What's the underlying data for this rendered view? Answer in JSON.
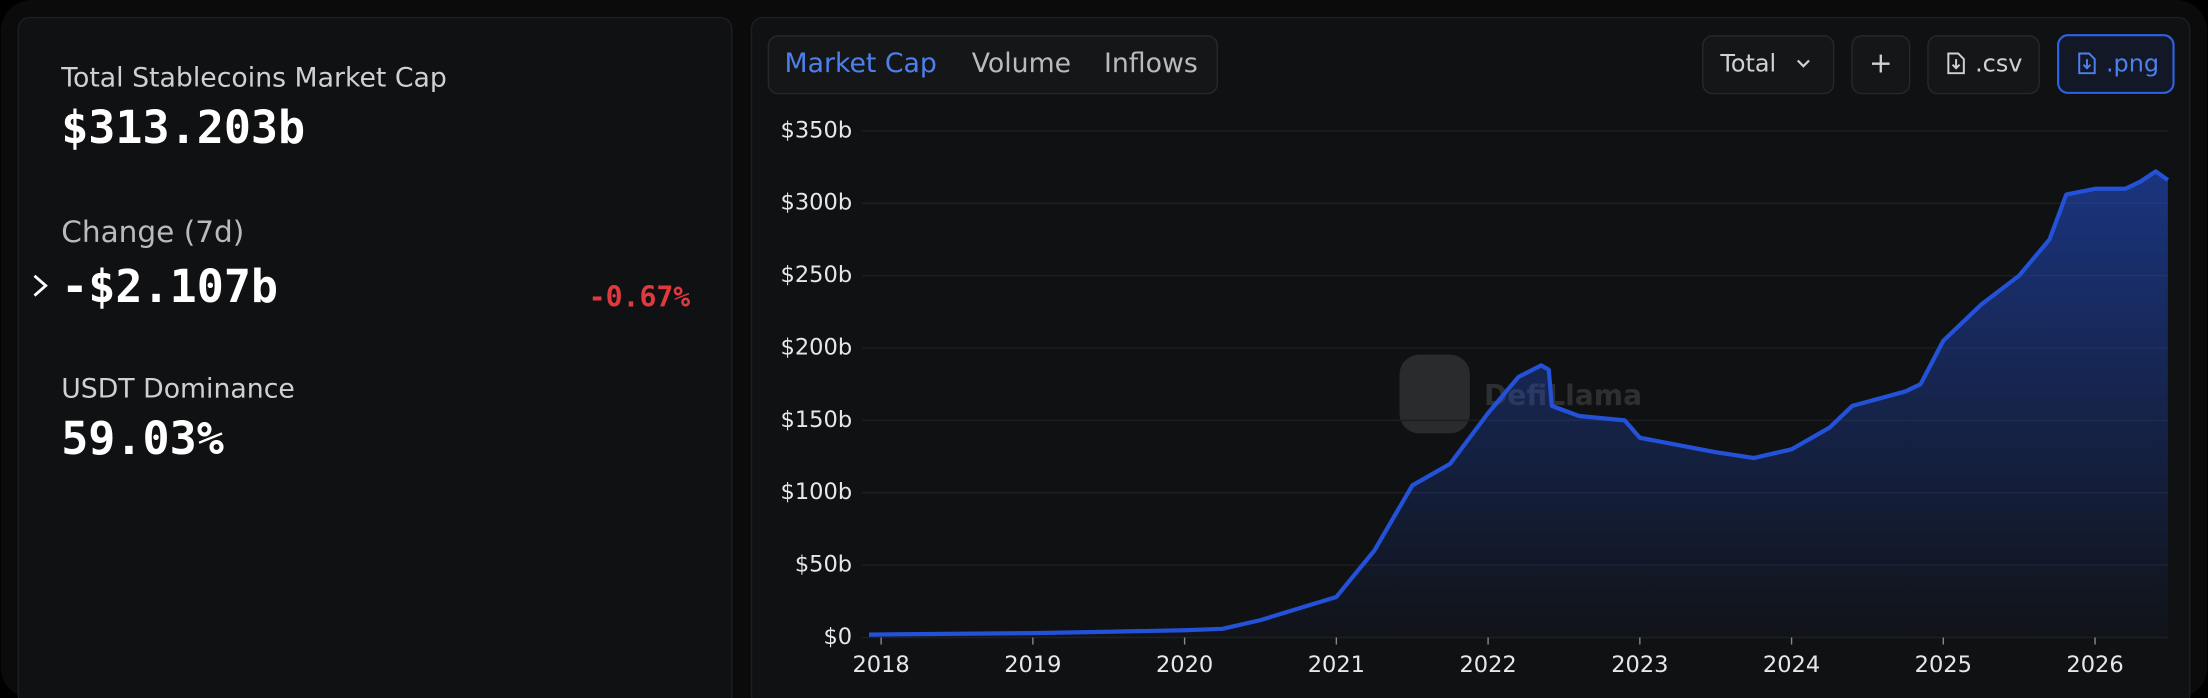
{
  "stats": {
    "market_cap_label": "Total Stablecoins Market Cap",
    "market_cap": "$313.203b",
    "change_label": "Change (7d)",
    "change": "-$2.107b",
    "change_pct": "-0.67%",
    "dominance_label": "USDT Dominance",
    "dominance": "59.03%"
  },
  "tabs": [
    "Market Cap",
    "Volume",
    "Inflows"
  ],
  "buttons": {
    "total": "Total",
    "add": "+",
    "csv": ".csv",
    "png": ".png"
  },
  "watermark": "DefiLlama",
  "chart_data": {
    "type": "area",
    "color": "#2352d8",
    "x": [
      2017.92,
      2019.0,
      2019.5,
      2020.0,
      2020.25,
      2020.5,
      2020.75,
      2021.0,
      2021.25,
      2021.5,
      2021.75,
      2022.0,
      2022.2,
      2022.35,
      2022.4,
      2022.42,
      2022.6,
      2022.9,
      2023.0,
      2023.5,
      2023.75,
      2024.0,
      2024.25,
      2024.4,
      2024.75,
      2024.85,
      2025.0,
      2025.25,
      2025.5,
      2025.7,
      2025.81,
      2026.0,
      2026.2,
      2026.3,
      2026.4,
      2026.48
    ],
    "values": [
      2,
      3,
      4,
      5,
      6,
      12,
      20,
      28,
      60,
      105,
      120,
      155,
      180,
      188,
      185,
      160,
      153,
      150,
      138,
      128,
      124,
      130,
      145,
      160,
      170,
      175,
      205,
      230,
      250,
      275,
      306,
      310,
      310,
      315,
      322,
      316
    ],
    "xlim": [
      2017.92,
      2026.48
    ],
    "xticks": [
      2018,
      2019,
      2020,
      2021,
      2022,
      2023,
      2024,
      2025,
      2026
    ],
    "ylim": [
      0,
      350
    ],
    "yticks": [
      {
        "value": 0,
        "label": "$0"
      },
      {
        "value": 50,
        "label": "$50b"
      },
      {
        "value": 100,
        "label": "$100b"
      },
      {
        "value": 150,
        "label": "$150b"
      },
      {
        "value": 200,
        "label": "$200b"
      },
      {
        "value": 250,
        "label": "$250b"
      },
      {
        "value": 300,
        "label": "$300b"
      },
      {
        "value": 350,
        "label": "$350b"
      }
    ],
    "grid": true
  }
}
